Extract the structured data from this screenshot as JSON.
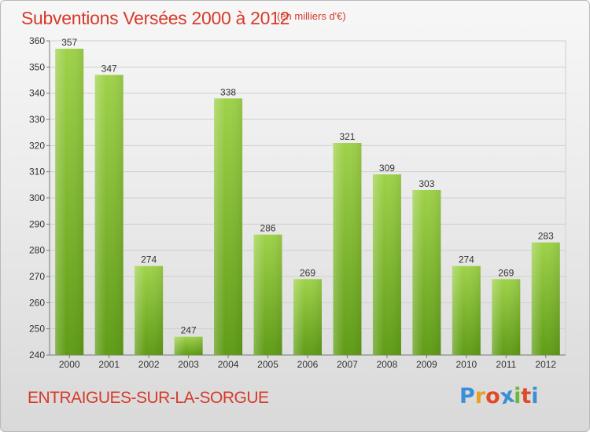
{
  "header": {
    "title": "Subventions Versées 2000 à 2012",
    "unit": "(en milliers d'€)"
  },
  "footer": {
    "commune": "ENTRAIGUES-SUR-LA-SORGUE",
    "logo": [
      "P",
      "r",
      "o",
      "x",
      "i",
      "t",
      "i"
    ],
    "logo_colors": [
      "#3a8fd6",
      "#e8a020",
      "#e04a2a",
      "#3a8fd6",
      "#6fb63a",
      "#e04a2a",
      "#3a8fd6"
    ]
  },
  "chart_data": {
    "type": "bar",
    "categories": [
      "2000",
      "2001",
      "2002",
      "2003",
      "2004",
      "2005",
      "2006",
      "2007",
      "2008",
      "2009",
      "2010",
      "2011",
      "2012"
    ],
    "values": [
      357,
      347,
      274,
      247,
      338,
      286,
      269,
      321,
      309,
      303,
      274,
      269,
      283
    ],
    "ylim": [
      240,
      360
    ],
    "yticks": [
      240,
      250,
      260,
      270,
      280,
      290,
      300,
      310,
      320,
      330,
      340,
      350,
      360
    ],
    "grid": true,
    "bar_color_top": "#9fd24a",
    "bar_color_bottom": "#5f9c16"
  }
}
